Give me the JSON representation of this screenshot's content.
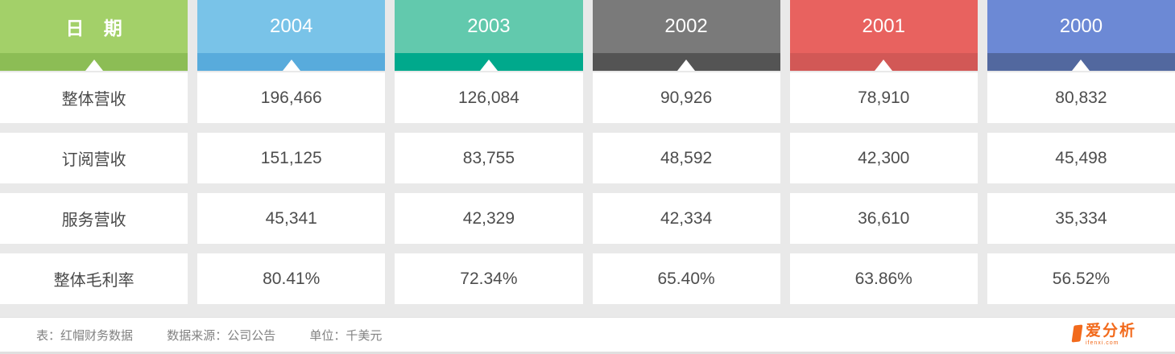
{
  "table": {
    "date_column": {
      "label": "日 期",
      "main_color": "#a3d069",
      "strip_color": "#8cbd55"
    },
    "year_columns": [
      {
        "label": "2004",
        "main_color": "#79c3e8",
        "strip_color": "#58abdc"
      },
      {
        "label": "2003",
        "main_color": "#62c9ad",
        "strip_color": "#00a98c"
      },
      {
        "label": "2002",
        "main_color": "#7a7a7a",
        "strip_color": "#545454"
      },
      {
        "label": "2001",
        "main_color": "#e8625f",
        "strip_color": "#d25856"
      },
      {
        "label": "2000",
        "main_color": "#6c89d5",
        "strip_color": "#52689f"
      }
    ],
    "rows": [
      {
        "label": "整体营收",
        "values": [
          "196,466",
          "126,084",
          "90,926",
          "78,910",
          "80,832"
        ]
      },
      {
        "label": "订阅营收",
        "values": [
          "151,125",
          "83,755",
          "48,592",
          "42,300",
          "45,498"
        ]
      },
      {
        "label": "服务营收",
        "values": [
          "45,341",
          "42,329",
          "42,334",
          "36,610",
          "35,334"
        ]
      },
      {
        "label": "整体毛利率",
        "values": [
          "80.41%",
          "72.34%",
          "65.40%",
          "63.86%",
          "56.52%"
        ]
      }
    ]
  },
  "footer": {
    "table_caption": "表：红帽财务数据",
    "source_caption": "数据来源：公司公告",
    "unit_caption": "单位：千美元",
    "logo_text": "爱分析",
    "logo_subtext": "ifenxi.com",
    "logo_color": "#f26a1c"
  },
  "chart_data": {
    "type": "table",
    "title": "红帽财务数据",
    "categories": [
      "2004",
      "2003",
      "2002",
      "2001",
      "2000"
    ],
    "series": [
      {
        "name": "整体营收",
        "values": [
          196466,
          126084,
          90926,
          78910,
          80832
        ]
      },
      {
        "name": "订阅营收",
        "values": [
          151125,
          83755,
          48592,
          42300,
          45498
        ]
      },
      {
        "name": "服务营收",
        "values": [
          45341,
          42329,
          42334,
          36610,
          35334
        ]
      },
      {
        "name": "整体毛利率",
        "values": [
          "80.41%",
          "72.34%",
          "65.40%",
          "63.86%",
          "56.52%"
        ]
      }
    ],
    "row_header_label": "日期",
    "source": "公司公告",
    "unit": "千美元"
  }
}
